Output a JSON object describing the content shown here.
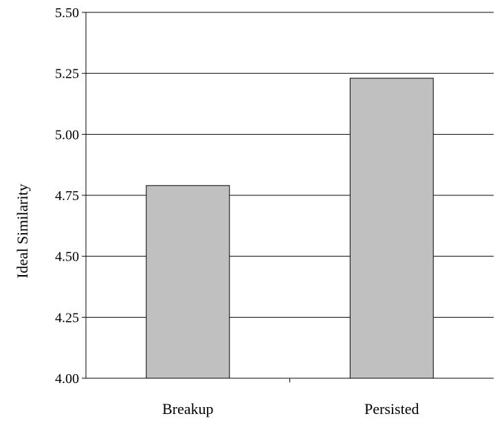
{
  "chart_data": {
    "type": "bar",
    "title": "",
    "xlabel": "",
    "ylabel": "Ideal Similarity",
    "categories": [
      "Breakup",
      "Persisted"
    ],
    "values": [
      4.79,
      5.23
    ],
    "ylim": [
      4.0,
      5.5
    ],
    "yticks": [
      "4.00",
      "4.25",
      "4.50",
      "4.75",
      "5.00",
      "5.25",
      "5.50"
    ],
    "grid": true,
    "legend": "none",
    "bar_color": "#c0c0c0",
    "bar_edge_color": "#000000"
  }
}
